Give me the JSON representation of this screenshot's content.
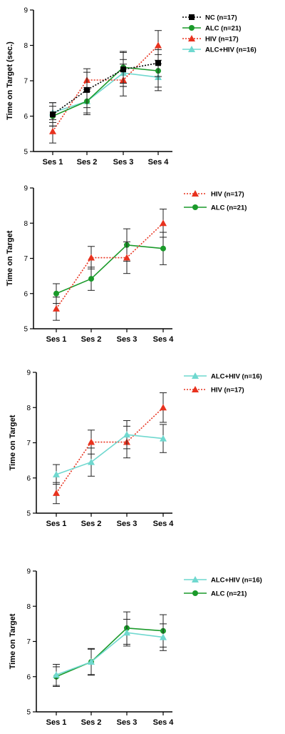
{
  "chart_data": [
    {
      "type": "line",
      "ylabel": "Time on Target (sec.)",
      "xlabel": "",
      "categories": [
        "Ses 1",
        "Ses 2",
        "Ses 3",
        "Ses 4"
      ],
      "ylim": [
        5,
        9
      ],
      "yticks": [
        "5",
        "6",
        "7",
        "8",
        "9"
      ],
      "legend_position": "top-right",
      "series": [
        {
          "name": "NC (n=17)",
          "values": [
            6.05,
            6.74,
            7.32,
            7.5
          ],
          "errors": [
            0.33,
            0.5,
            0.48,
            0.38
          ],
          "color": "#000000",
          "marker": "square",
          "dash": "2,2"
        },
        {
          "name": "ALC (n=21)",
          "values": [
            6.0,
            6.42,
            7.38,
            7.28
          ],
          "errors": [
            0.28,
            0.33,
            0.45,
            0.46
          ],
          "color": "#1a9a2a",
          "marker": "circle",
          "dash": ""
        },
        {
          "name": "HIV (n=17)",
          "values": [
            5.57,
            7.02,
            7.02,
            8.0
          ],
          "errors": [
            0.33,
            0.32,
            0.45,
            0.42
          ],
          "color": "#e8321e",
          "marker": "triangle",
          "dash": "2,2"
        },
        {
          "name": "ALC+HIV (n=16)",
          "values": [
            6.1,
            6.42,
            7.22,
            7.1
          ],
          "errors": [
            0.28,
            0.38,
            0.38,
            0.38
          ],
          "color": "#6fd8cf",
          "marker": "triangle",
          "dash": ""
        }
      ]
    },
    {
      "type": "line",
      "ylabel": "Time on Target",
      "xlabel": "",
      "categories": [
        "Ses 1",
        "Ses 2",
        "Ses 3",
        "Ses 4"
      ],
      "ylim": [
        5,
        9
      ],
      "yticks": [
        "5",
        "6",
        "7",
        "8",
        "9"
      ],
      "legend_position": "top-right",
      "series": [
        {
          "name": "HIV  (n=17)",
          "values": [
            5.57,
            7.02,
            7.02,
            8.0
          ],
          "errors": [
            0.33,
            0.32,
            0.45,
            0.4
          ],
          "color": "#e8321e",
          "marker": "triangle",
          "dash": "2,2"
        },
        {
          "name": "ALC  (n=21)",
          "values": [
            6.0,
            6.42,
            7.38,
            7.28
          ],
          "errors": [
            0.28,
            0.33,
            0.46,
            0.46
          ],
          "color": "#1a9a2a",
          "marker": "circle",
          "dash": ""
        }
      ]
    },
    {
      "type": "line",
      "ylabel": "Time on Target",
      "xlabel": "",
      "categories": [
        "Ses 1",
        "Ses 2",
        "Ses 3",
        "Ses 4"
      ],
      "ylim": [
        5,
        9
      ],
      "yticks": [
        "5",
        "6",
        "7",
        "8",
        "9"
      ],
      "legend_position": "top-right",
      "series": [
        {
          "name": "ALC+HIV  (n=16)",
          "values": [
            6.1,
            6.45,
            7.23,
            7.12
          ],
          "errors": [
            0.28,
            0.4,
            0.4,
            0.4
          ],
          "color": "#6fd8cf",
          "marker": "triangle",
          "dash": ""
        },
        {
          "name": "HIV  (n=17)",
          "values": [
            5.57,
            7.02,
            7.02,
            8.0
          ],
          "errors": [
            0.3,
            0.34,
            0.45,
            0.42
          ],
          "color": "#e8321e",
          "marker": "triangle",
          "dash": "2,2"
        }
      ]
    },
    {
      "type": "line",
      "ylabel": "Time on Target",
      "xlabel": "",
      "categories": [
        "Ses 1",
        "Ses 2",
        "Ses 3",
        "Ses 4"
      ],
      "ylim": [
        5,
        9
      ],
      "yticks": [
        "5",
        "6",
        "7",
        "8",
        "9"
      ],
      "legend_position": "top-right",
      "series": [
        {
          "name": "ALC+HIV  (n=16)",
          "values": [
            6.05,
            6.42,
            7.25,
            7.12
          ],
          "errors": [
            0.3,
            0.38,
            0.38,
            0.38
          ],
          "color": "#6fd8cf",
          "marker": "triangle",
          "dash": ""
        },
        {
          "name": "ALC  (n=21)",
          "values": [
            6.0,
            6.42,
            7.38,
            7.3
          ],
          "errors": [
            0.28,
            0.36,
            0.46,
            0.46
          ],
          "color": "#1a9a2a",
          "marker": "circle",
          "dash": ""
        }
      ]
    }
  ]
}
